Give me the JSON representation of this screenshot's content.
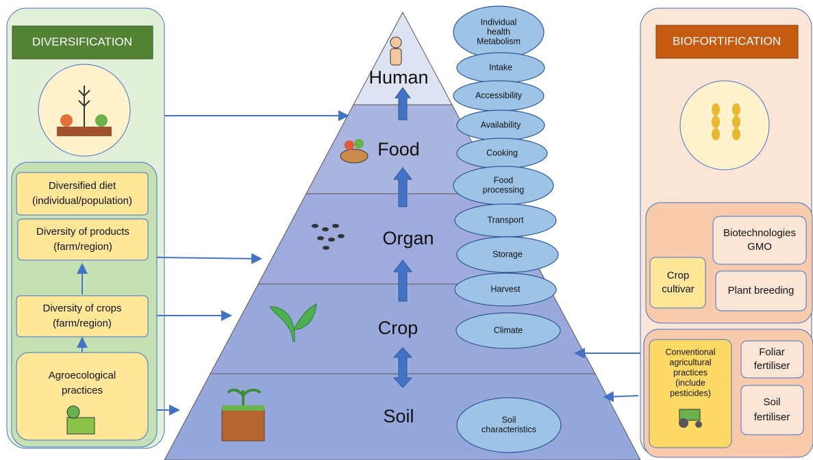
{
  "diversification": {
    "title": "DIVERSIFICATION",
    "boxes": [
      [
        "Diversified diet",
        "(individual/population)"
      ],
      [
        "Diversity of products",
        "(farm/region)"
      ],
      [
        "Diversity of crops",
        "(farm/region)"
      ],
      [
        "Agroecological",
        "practices"
      ]
    ]
  },
  "pyramid": {
    "levels": [
      "Human",
      "Food",
      "Organ",
      "Crop",
      "Soil"
    ],
    "factors": [
      [
        "Individual",
        "health",
        "Metabolism"
      ],
      [
        "Intake"
      ],
      [
        "Accessibility"
      ],
      [
        "Availability"
      ],
      [
        "Cooking"
      ],
      [
        "Food",
        "processing"
      ],
      [
        "Transport"
      ],
      [
        "Storage"
      ],
      [
        "Harvest"
      ],
      [
        "Climate"
      ],
      [
        "Soil",
        "characteristics"
      ]
    ]
  },
  "biofortification": {
    "title": "BIOFORTIFICATION",
    "biotechnologies": [
      "Biotechnologies",
      "GMO"
    ],
    "crop_cultivar": [
      "Crop",
      "cultivar"
    ],
    "plant_breeding": [
      "Plant breeding"
    ],
    "conventional": [
      "Conventional",
      "agricultural",
      "practices",
      "(include",
      "pesticides)"
    ],
    "foliar": [
      "Foliar",
      "fertiliser"
    ],
    "soil": [
      "Soil",
      "fertiliser"
    ]
  }
}
